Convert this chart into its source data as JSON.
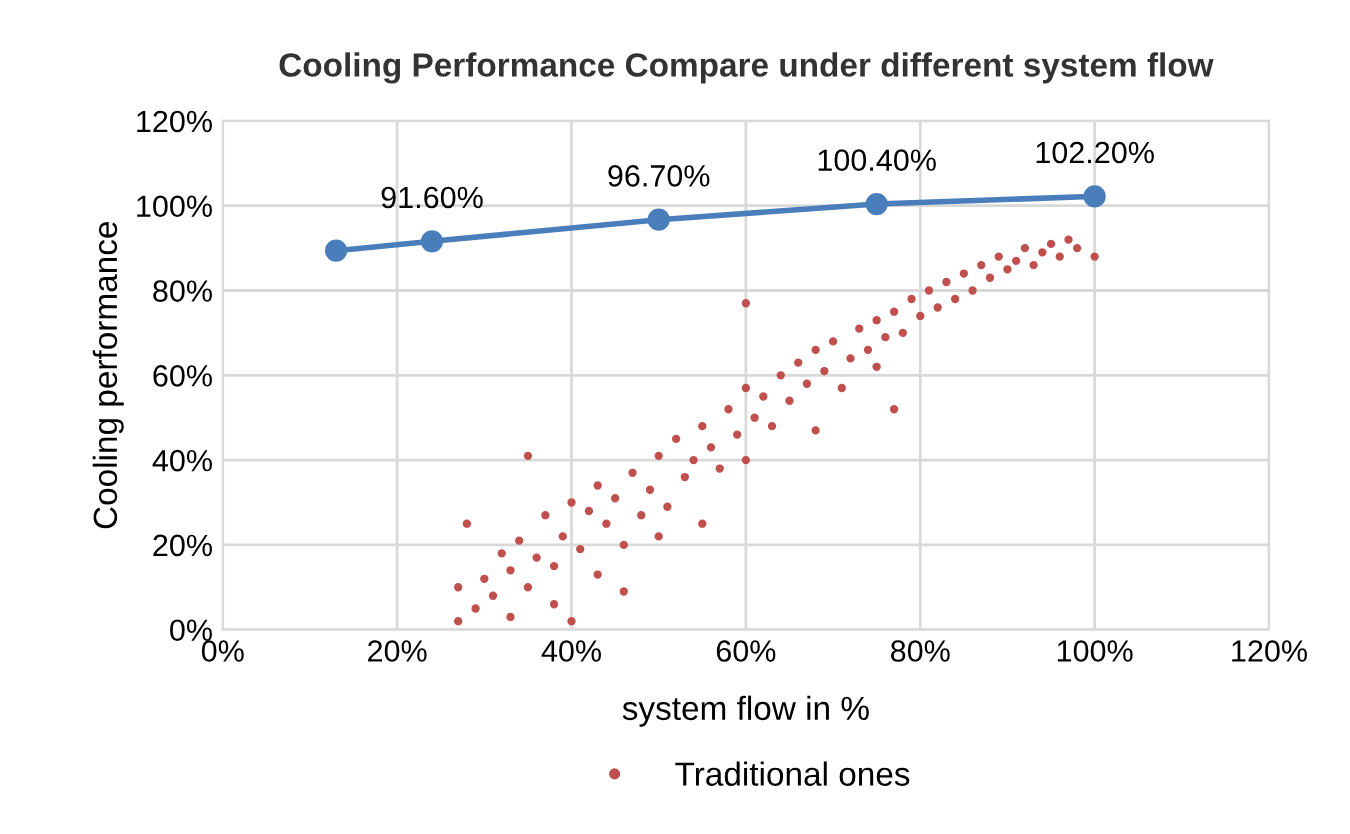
{
  "chart_data": {
    "type": "line",
    "title": "Cooling Performance Compare under different system flow",
    "xlabel": "system flow in %",
    "ylabel": "Cooling performance",
    "xlim": [
      0,
      120
    ],
    "xticks": [
      {
        "value": 0,
        "label": "0%"
      },
      {
        "value": 20,
        "label": "20%"
      },
      {
        "value": 40,
        "label": "40%"
      },
      {
        "value": 60,
        "label": "60%"
      },
      {
        "value": 80,
        "label": "80%"
      },
      {
        "value": 100,
        "label": "100%"
      },
      {
        "value": 120,
        "label": "120%"
      }
    ],
    "ylim": [
      0,
      120
    ],
    "yticks": [
      {
        "value": 0,
        "label": "0%"
      },
      {
        "value": 20,
        "label": "20%"
      },
      {
        "value": 40,
        "label": "40%"
      },
      {
        "value": 60,
        "label": "60%"
      },
      {
        "value": 80,
        "label": "80%"
      },
      {
        "value": 100,
        "label": "100%"
      },
      {
        "value": 120,
        "label": "120%"
      }
    ],
    "grid": true,
    "legend": "bottom",
    "series": [
      {
        "color": "#4a7ebb",
        "marker": "circle",
        "x": [
          13,
          24,
          50,
          75,
          100
        ],
        "values": [
          89.4,
          91.6,
          96.7,
          100.4,
          102.2
        ],
        "value_labels": [
          null,
          "91.60%",
          "96.70%",
          "100.40%",
          "102.20%"
        ]
      },
      {
        "type": "scatter",
        "name": "Traditional ones",
        "color": "#c0504d",
        "marker": "circle",
        "x": [
          27,
          27,
          28,
          29,
          30,
          31,
          32,
          33,
          33,
          34,
          35,
          36,
          37,
          38,
          38,
          39,
          40,
          40,
          41,
          42,
          43,
          43,
          44,
          45,
          46,
          46,
          47,
          48,
          49,
          50,
          50,
          51,
          52,
          53,
          54,
          55,
          55,
          56,
          57,
          58,
          59,
          60,
          60,
          61,
          62,
          63,
          64,
          65,
          66,
          67,
          68,
          68,
          69,
          70,
          71,
          72,
          73,
          74,
          75,
          75,
          76,
          77,
          78,
          79,
          80,
          81,
          82,
          83,
          84,
          85,
          86,
          87,
          88,
          89,
          90,
          91,
          92,
          93,
          94,
          95,
          96,
          97,
          98,
          100,
          60,
          77,
          35
        ],
        "values": [
          2,
          10,
          25,
          5,
          12,
          8,
          18,
          14,
          3,
          21,
          10,
          17,
          27,
          15,
          6,
          22,
          2,
          30,
          19,
          28,
          13,
          34,
          25,
          31,
          20,
          9,
          37,
          27,
          33,
          41,
          22,
          29,
          45,
          36,
          40,
          25,
          48,
          43,
          38,
          52,
          46,
          57,
          40,
          50,
          55,
          48,
          60,
          54,
          63,
          58,
          47,
          66,
          61,
          68,
          57,
          64,
          71,
          66,
          62,
          73,
          69,
          75,
          70,
          78,
          74,
          80,
          76,
          82,
          78,
          84,
          80,
          86,
          83,
          88,
          85,
          87,
          90,
          86,
          89,
          91,
          88,
          92,
          90,
          88,
          77,
          52,
          41
        ]
      }
    ]
  }
}
